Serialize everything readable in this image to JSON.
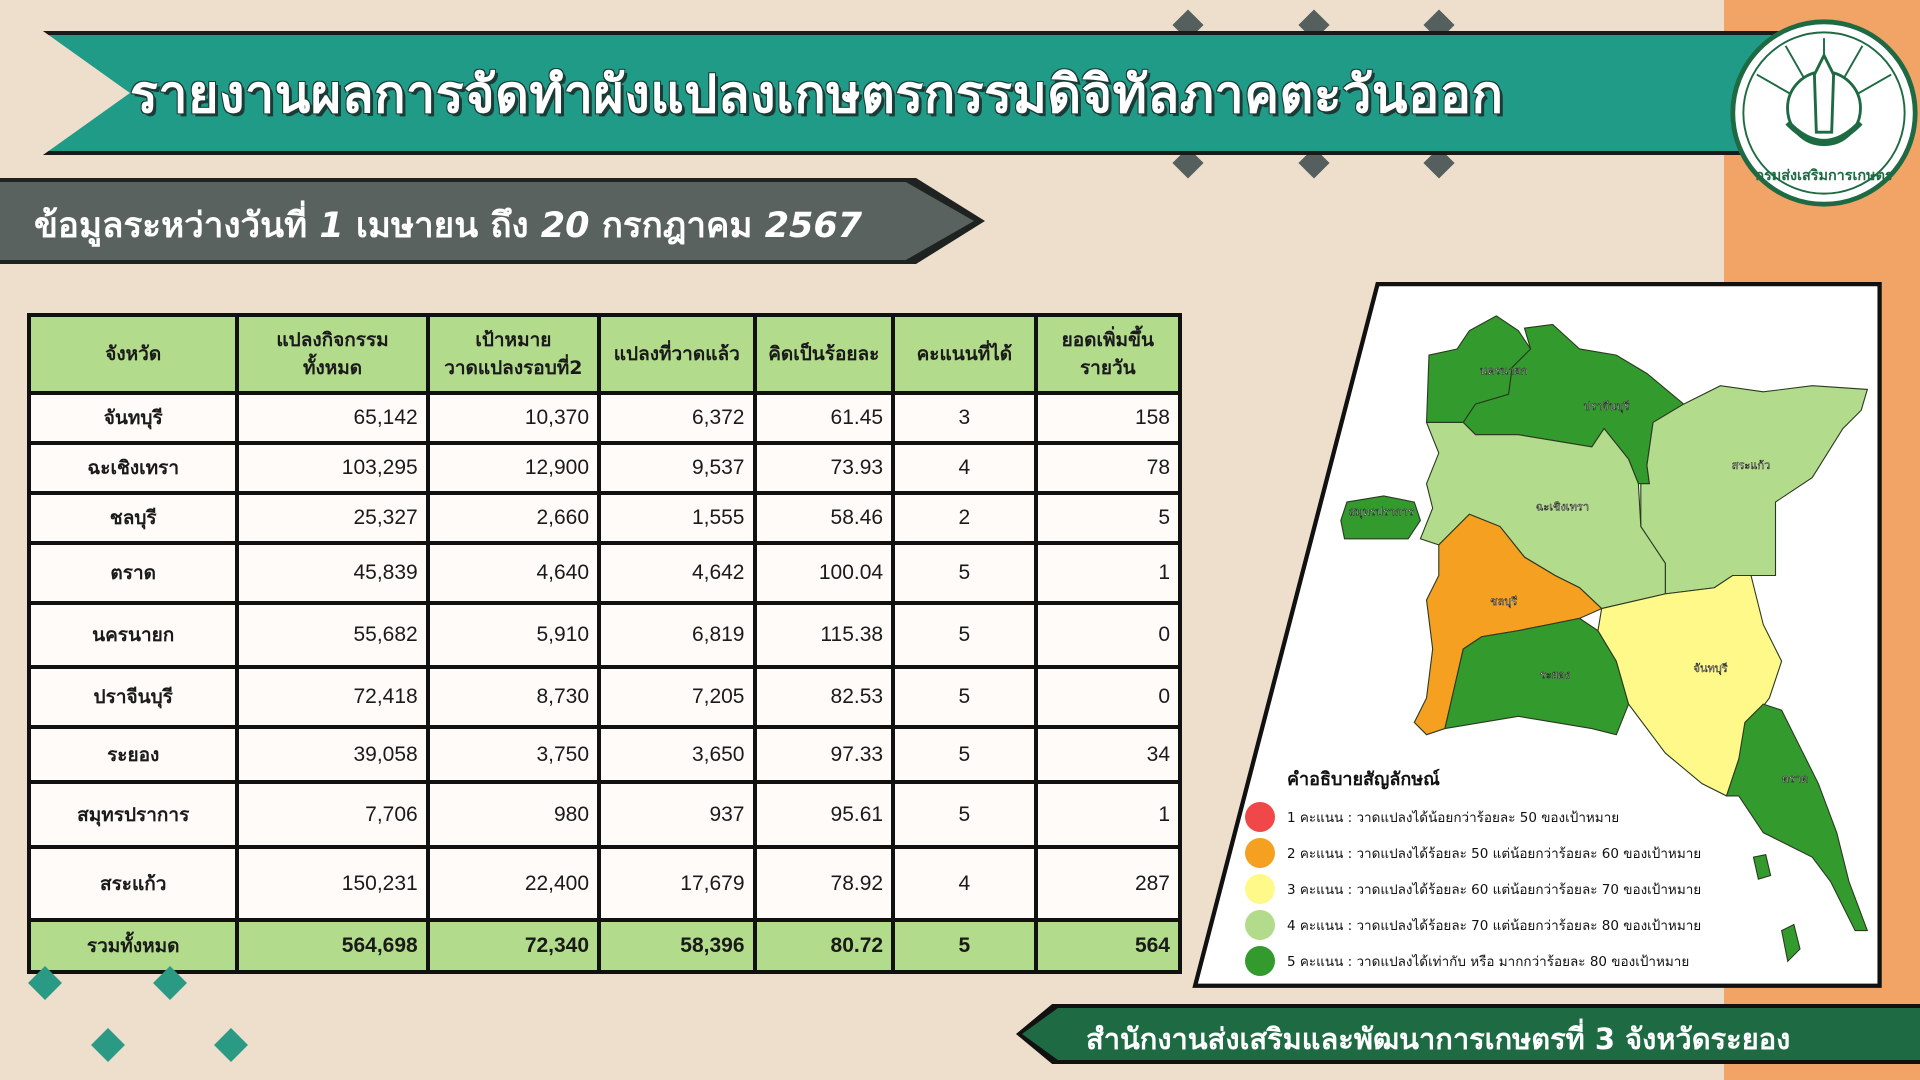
{
  "title": "รายงานผลการจัดทำผังแปลงเกษตรกรรมดิจิทัลภาคตะวันออก",
  "subtitle": {
    "prefix": "ข้อมูลระหว่างวันที่",
    "start_day": "1",
    "start_month": "เมษายน",
    "to": "ถึง",
    "end_day": "20",
    "end_month": "กรกฎาคม",
    "year": "2567"
  },
  "logo_text": "กรมส่งเสริมการเกษตร",
  "table": {
    "headers": [
      "จังหวัด",
      "แปลงกิจกรรม\nทั้งหมด",
      "เป้าหมาย\nวาดแปลงรอบที่2",
      "แปลงที่วาดแล้ว",
      "คิดเป็นร้อยละ",
      "คะแนนที่ได้",
      "ยอดเพิ่มขึ้น\nรายวัน"
    ],
    "rows": [
      [
        "จันทบุรี",
        "65,142",
        "10,370",
        "6,372",
        "61.45",
        "3",
        "158"
      ],
      [
        "ฉะเชิงเทรา",
        "103,295",
        "12,900",
        "9,537",
        "73.93",
        "4",
        "78"
      ],
      [
        "ชลบุรี",
        "25,327",
        "2,660",
        "1,555",
        "58.46",
        "2",
        "5"
      ],
      [
        "ตราด",
        "45,839",
        "4,640",
        "4,642",
        "100.04",
        "5",
        "1"
      ],
      [
        "นครนายก",
        "55,682",
        "5,910",
        "6,819",
        "115.38",
        "5",
        "0"
      ],
      [
        "ปราจีนบุรี",
        "72,418",
        "8,730",
        "7,205",
        "82.53",
        "5",
        "0"
      ],
      [
        "ระยอง",
        "39,058",
        "3,750",
        "3,650",
        "97.33",
        "5",
        "34"
      ],
      [
        "สมุทรปราการ",
        "7,706",
        "980",
        "937",
        "95.61",
        "5",
        "1"
      ],
      [
        "สระแก้ว",
        "150,231",
        "22,400",
        "17,679",
        "78.92",
        "4",
        "287"
      ]
    ],
    "total": [
      "รวมทั้งหมด",
      "564,698",
      "72,340",
      "58,396",
      "80.72",
      "5",
      "564"
    ]
  },
  "map": {
    "labels": {
      "nakhon_nayok": "นครนายก",
      "prachinburi": "ปราจีนบุรี",
      "sa_kaeo": "สระแก้ว",
      "chachoengsao": "ฉะเชิงเทรา",
      "samut_prakan": "สมุทรปราการ",
      "chonburi": "ชลบุรี",
      "rayong": "ระยอง",
      "chanthaburi": "จันทบุรี",
      "trat": "ตราด"
    },
    "legend": {
      "title": "คำอธิบายสัญลักษณ์",
      "items": [
        {
          "label": "1 คะแนน : วาดแปลงได้น้อยกว่าร้อยละ 50 ของเป้าหมาย",
          "color": "#f04848"
        },
        {
          "label": "2 คะแนน : วาดแปลงได้ร้อยละ 50 แต่น้อยกว่าร้อยละ 60 ของเป้าหมาย",
          "color": "#f5a021"
        },
        {
          "label": "3 คะแนน : วาดแปลงได้ร้อยละ 60 แต่น้อยกว่าร้อยละ 70 ของเป้าหมาย",
          "color": "#fff98a"
        },
        {
          "label": "4 คะแนน : วาดแปลงได้ร้อยละ 70 แต่น้อยกว่าร้อยละ 80 ของเป้าหมาย",
          "color": "#b2dc8c"
        },
        {
          "label": "5 คะแนน : วาดแปลงได้เท่ากับ หรือ มากกว่าร้อยละ 80 ของเป้าหมาย",
          "color": "#339a2e"
        }
      ]
    }
  },
  "footer": "สำนักงานส่งเสริมและพัฒนาการเกษตรที่ 3 จังหวัดระยอง",
  "colors": {
    "teal": "#1f9b88",
    "gray_banner": "#59625f",
    "header_green": "#b2dc8c",
    "footer_green": "#1d6a43",
    "orange_strip": "#f2a366",
    "background": "#eedfcc"
  }
}
